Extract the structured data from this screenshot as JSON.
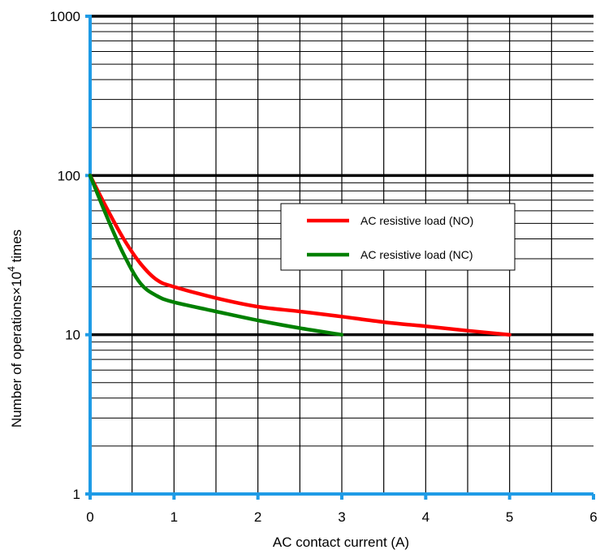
{
  "chart_data": {
    "type": "line",
    "xlabel": "AC contact current (A)",
    "ylabel_prefix": "Number of operations×10",
    "ylabel_superscript": "4",
    "ylabel_suffix": " times",
    "xlim": [
      0,
      6
    ],
    "ylim": [
      1,
      1000
    ],
    "yscale": "log",
    "grid": true,
    "legend_position": "center-right",
    "x_ticks": [
      "0",
      "1",
      "2",
      "3",
      "4",
      "5",
      "6"
    ],
    "y_ticks": [
      "1",
      "10",
      "100",
      "1000"
    ],
    "series": [
      {
        "name": "AC resistive load (NO)",
        "color": "#ff0000",
        "points": [
          [
            0,
            100
          ],
          [
            0.2,
            62
          ],
          [
            0.4,
            40
          ],
          [
            0.6,
            28
          ],
          [
            0.8,
            22
          ],
          [
            1.0,
            20
          ],
          [
            1.5,
            17
          ],
          [
            2.0,
            15
          ],
          [
            2.5,
            14
          ],
          [
            3.0,
            13
          ],
          [
            3.5,
            12
          ],
          [
            4.0,
            11.3
          ],
          [
            4.5,
            10.6
          ],
          [
            5.0,
            10
          ]
        ]
      },
      {
        "name": "AC resistive load (NC)",
        "color": "#008000",
        "points": [
          [
            0,
            100
          ],
          [
            0.2,
            55
          ],
          [
            0.4,
            32
          ],
          [
            0.6,
            21
          ],
          [
            0.8,
            17.5
          ],
          [
            1.0,
            16
          ],
          [
            1.5,
            14
          ],
          [
            2.0,
            12.3
          ],
          [
            2.5,
            11
          ],
          [
            3.0,
            10
          ]
        ]
      }
    ]
  }
}
